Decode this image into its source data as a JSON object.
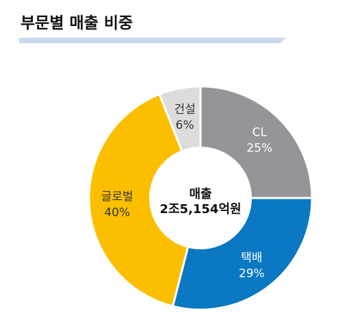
{
  "header": {
    "title": "부문별 매출 비중"
  },
  "colors": {
    "title_bar": "#c9d9ee",
    "donut_hole": "#ffffff",
    "separator": "#ffffff"
  },
  "chart_data": {
    "type": "pie",
    "variant": "donut",
    "start": "12 o'clock",
    "direction": "clockwise",
    "center_text": {
      "line1": "매출",
      "line2": "2조5,154억원"
    },
    "slices": [
      {
        "label": "CL",
        "value": 25,
        "value_label": "25%",
        "color": "#939598",
        "text_color": "#ffffff"
      },
      {
        "label": "택배",
        "value": 29,
        "value_label": "29%",
        "color": "#0a78c2",
        "text_color": "#ffffff"
      },
      {
        "label": "글로벌",
        "value": 40,
        "value_label": "40%",
        "color": "#fbbf00",
        "text_color": "#333333"
      },
      {
        "label": "건설",
        "value": 6,
        "value_label": "6%",
        "color": "#dcdcdc",
        "text_color": "#333333"
      }
    ]
  }
}
